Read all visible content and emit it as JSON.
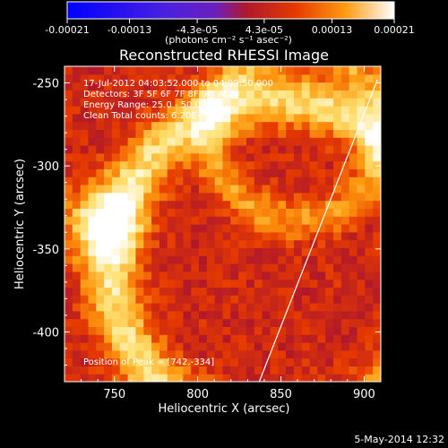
{
  "chart_data": {
    "type": "heatmap",
    "title": "Reconstructed RHESSI Image",
    "xlabel": "Heliocentric X (arcsec)",
    "ylabel": "Heliocentric Y (arcsec)",
    "xlim": [
      720,
      910
    ],
    "ylim": [
      -430,
      -240
    ],
    "x_ticks": [
      "750",
      "800",
      "850",
      "900"
    ],
    "x_tick_values": [
      750,
      800,
      850,
      900
    ],
    "y_ticks": [
      "-250",
      "-300",
      "-350",
      "-400"
    ],
    "y_tick_values": [
      -250,
      -300,
      -350,
      -400
    ],
    "colorbar": {
      "ticks": [
        "-0.00021",
        "-0.00013",
        "-4.3e-05",
        "4.3e-05",
        "0.00013",
        "0.00021"
      ],
      "tick_values": [
        -0.00021,
        -0.00013,
        -4.3e-05,
        4.3e-05,
        0.00013,
        0.00021
      ],
      "range": [
        -0.00021,
        0.00021
      ],
      "unit_label": "(photons cm⁻² s⁻¹ asec⁻²)",
      "colors": [
        "#0000ff",
        "#6a1fbf",
        "#b0182a",
        "#e63a00",
        "#ff9a10",
        "#ffe070",
        "#ffffff"
      ]
    },
    "annotations": [
      "17-Jul-2012 04:03:52.000 to 04:09:50.000",
      "Detectors: 3F 5F 6F 7F 8F 9F, Att 0",
      "Energy Range: 25.0 - 50.0 keV",
      "Clean    Total counts: 6.20E+03"
    ],
    "peak_label": "Position of Peak = [742,-334]",
    "peak": [
      742,
      -334
    ],
    "limb_line": [
      [
        837,
        -430
      ],
      [
        908,
        -248
      ]
    ],
    "footer_date": "5-May-2014 12:32",
    "grid": false
  }
}
